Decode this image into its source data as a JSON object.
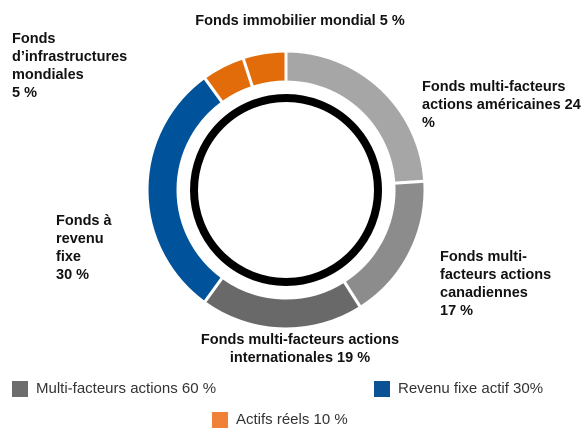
{
  "chart_data": {
    "type": "donut",
    "categories": [
      "Fonds multi-facteurs actions américaines",
      "Fonds multi-facteurs actions canadiennes",
      "Fonds multi-facteurs actions internationales",
      "Fonds à revenu fixe",
      "Fonds d’infrastructures mondiales",
      "Fonds immobilier mondial"
    ],
    "values": [
      24,
      17,
      19,
      30,
      5,
      5
    ],
    "value_labels": [
      "24 %",
      "17 %",
      "19 %",
      "30 %",
      "5 %",
      "5 %"
    ],
    "colors": [
      "#a6a6a6",
      "#8c8c8c",
      "#696969",
      "#00539b",
      "#e36c0a",
      "#e36c0a"
    ],
    "legend": [
      {
        "label": "Multi-facteurs actions 60 %",
        "color": "#6d6d6d"
      },
      {
        "label": "Revenu fixe actif 30%",
        "color": "#0b5195"
      },
      {
        "label": "Actifs réels 10 %",
        "color": "#f08237"
      }
    ]
  }
}
